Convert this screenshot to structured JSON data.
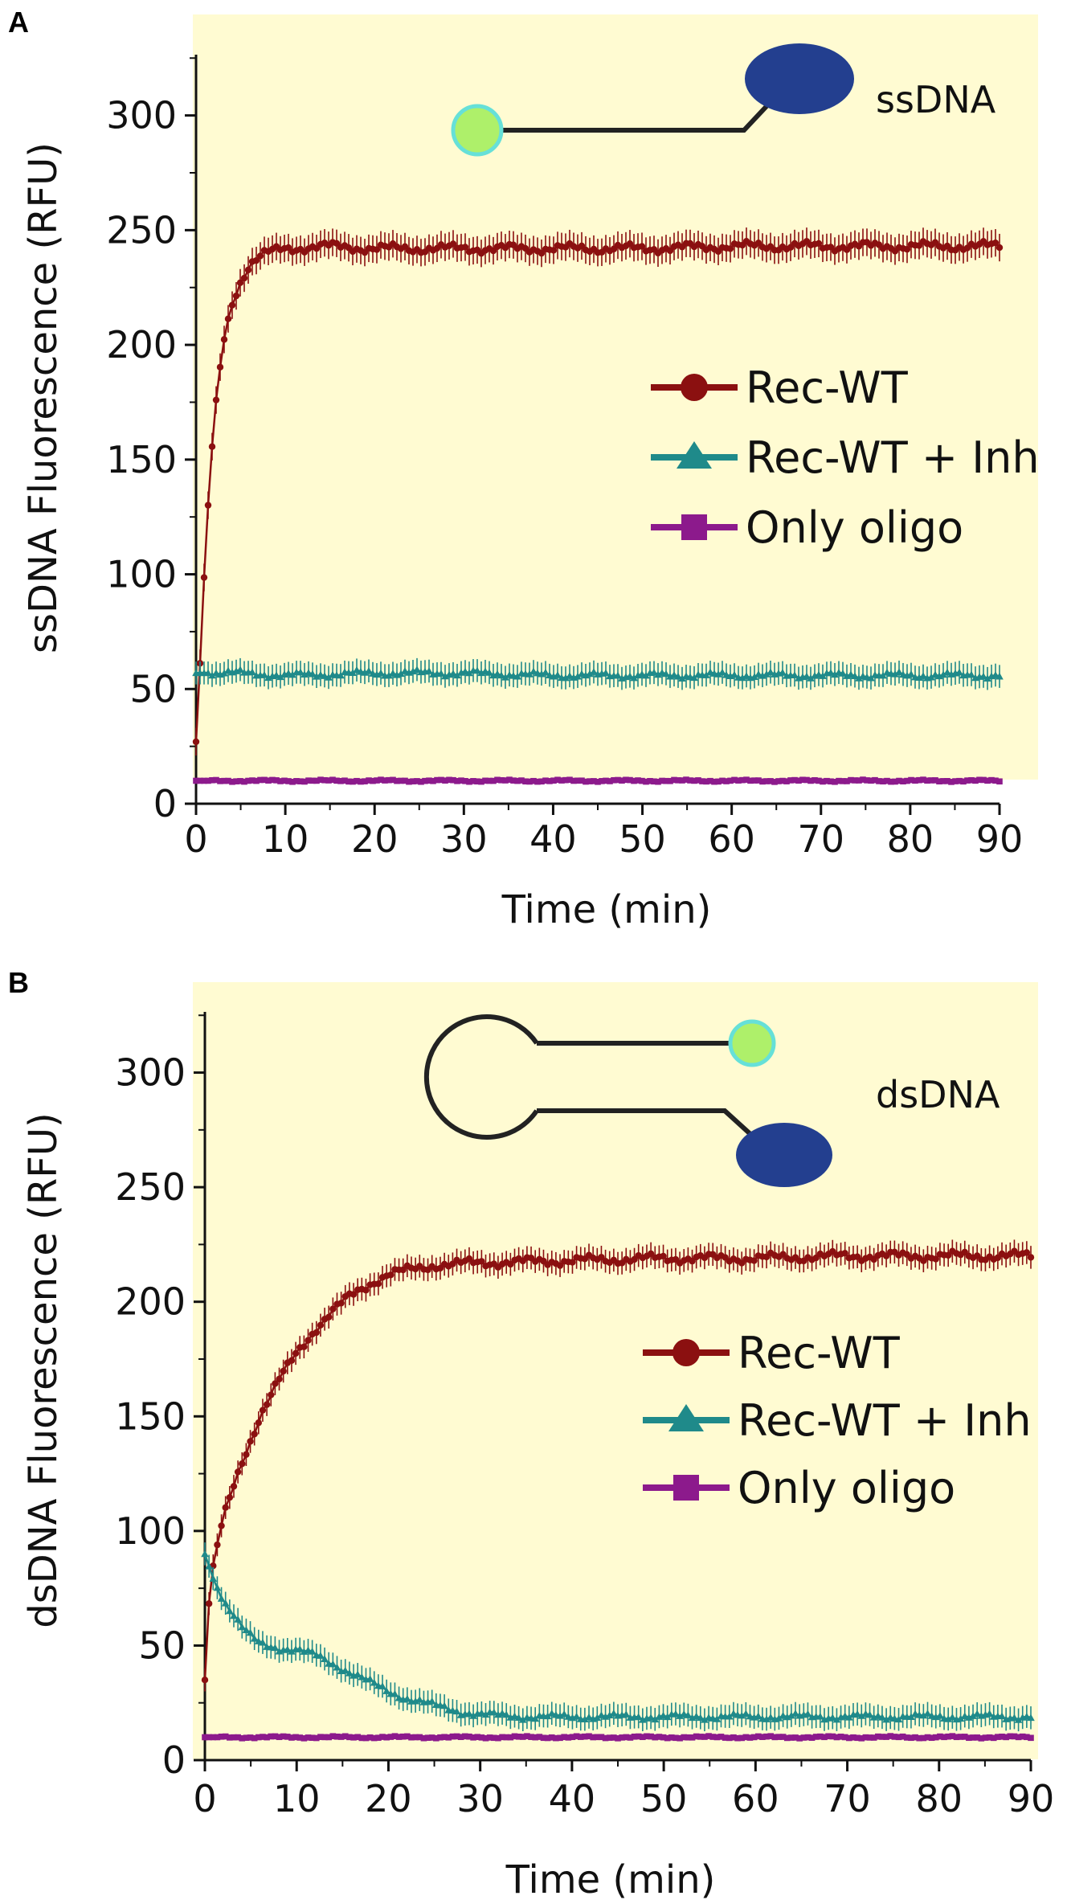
{
  "colors": {
    "plot_bg": "#fffbd2",
    "rec_wt": "#8b1010",
    "rec_wt_inh": "#1f8a8a",
    "only_oligo": "#8c1a8c",
    "fluorophore": "#aef06a",
    "fluorophore_ring": "#66e0d8",
    "quencher": "#233f8f",
    "strand": "#222222"
  },
  "chart_data": [
    {
      "panel": "A",
      "type": "line",
      "ylabel": "ssDNA Fluorescence (RFU)",
      "xlabel": "Time (min)",
      "xlim": [
        0,
        90
      ],
      "ylim": [
        0,
        330
      ],
      "x_ticks": [
        0,
        10,
        20,
        30,
        40,
        50,
        60,
        70,
        80,
        90
      ],
      "y_ticks": [
        0,
        50,
        100,
        150,
        200,
        250,
        300
      ],
      "diagram_label": "ssDNA",
      "legend": [
        "Rec-WT",
        "Rec-WT + Inh",
        "Only oligo"
      ],
      "series": [
        {
          "name": "Rec-WT",
          "color_key": "rec_wt",
          "marker": "circle",
          "x": [
            0,
            0.5,
            1,
            1.5,
            2,
            2.5,
            3,
            4,
            5,
            6,
            7,
            8,
            10,
            15,
            20,
            30,
            40,
            50,
            60,
            70,
            80,
            90
          ],
          "values": [
            27,
            65,
            107,
            140,
            165,
            183,
            200,
            218,
            228,
            235,
            238,
            240,
            242,
            243,
            242,
            242,
            242,
            242,
            243,
            243,
            243,
            243
          ],
          "error": 6
        },
        {
          "name": "Rec-WT + Inh",
          "color_key": "rec_wt_inh",
          "marker": "triangle",
          "x": [
            0,
            5,
            10,
            20,
            30,
            40,
            50,
            60,
            70,
            80,
            90
          ],
          "values": [
            57,
            57,
            56,
            57,
            57,
            56,
            56,
            56,
            56,
            56,
            56
          ],
          "error": 5
        },
        {
          "name": "Only oligo",
          "color_key": "only_oligo",
          "marker": "square",
          "x": [
            0,
            10,
            20,
            30,
            40,
            50,
            60,
            70,
            80,
            90
          ],
          "values": [
            10,
            10,
            10,
            10,
            10,
            10,
            10,
            10,
            10,
            10
          ],
          "error": 1
        }
      ]
    },
    {
      "panel": "B",
      "type": "line",
      "ylabel": "dsDNA Fluorescence (RFU)",
      "xlabel": "Time (min)",
      "xlim": [
        0,
        90
      ],
      "ylim": [
        0,
        330
      ],
      "x_ticks": [
        0,
        10,
        20,
        30,
        40,
        50,
        60,
        70,
        80,
        90
      ],
      "y_ticks": [
        0,
        50,
        100,
        150,
        200,
        250,
        300
      ],
      "diagram_label": "dsDNA",
      "legend": [
        "Rec-WT",
        "Rec-WT + Inh",
        "Only oligo"
      ],
      "series": [
        {
          "name": "Rec-WT",
          "color_key": "rec_wt",
          "marker": "circle",
          "x": [
            0,
            0.5,
            1,
            2,
            3,
            4,
            5,
            6,
            8,
            10,
            12,
            14,
            16,
            18,
            20,
            25,
            30,
            40,
            50,
            60,
            70,
            80,
            90
          ],
          "values": [
            35,
            72,
            88,
            105,
            118,
            130,
            140,
            150,
            165,
            178,
            188,
            196,
            203,
            208,
            212,
            216,
            217,
            218,
            219,
            219,
            220,
            220,
            220
          ],
          "error": 5
        },
        {
          "name": "Rec-WT + Inh",
          "color_key": "rec_wt_inh",
          "marker": "triangle",
          "x": [
            0,
            1,
            2,
            3,
            4,
            5,
            6,
            8,
            10,
            12,
            14,
            16,
            18,
            20,
            22,
            25,
            28,
            30,
            35,
            40,
            50,
            60,
            70,
            80,
            90
          ],
          "values": [
            90,
            78,
            70,
            64,
            58,
            54,
            51,
            49,
            48,
            46,
            42,
            38,
            34,
            30,
            27,
            24,
            21,
            20,
            19,
            19,
            19,
            19,
            19,
            19,
            19
          ],
          "error": 5
        },
        {
          "name": "Only oligo",
          "color_key": "only_oligo",
          "marker": "square",
          "x": [
            0,
            10,
            20,
            30,
            40,
            50,
            60,
            70,
            80,
            90
          ],
          "values": [
            10,
            10,
            10,
            10,
            10,
            10,
            10,
            10,
            10,
            10
          ],
          "error": 1
        }
      ]
    }
  ]
}
